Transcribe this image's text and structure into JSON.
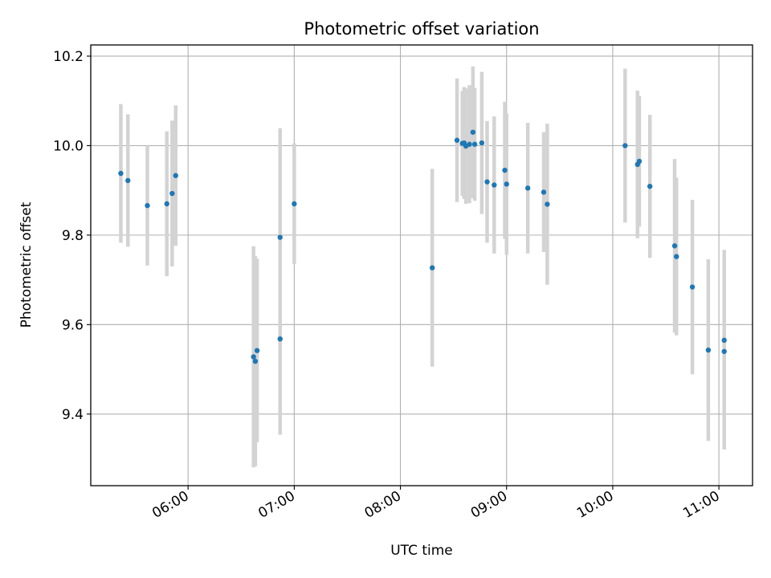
{
  "chart_data": {
    "type": "scatter",
    "title": "Photometric offset variation",
    "xlabel": "UTC time",
    "ylabel": "Photometric offset",
    "x_ticks": [
      "06:00",
      "07:00",
      "08:00",
      "09:00",
      "10:00",
      "11:00"
    ],
    "y_ticks": [
      "9.4",
      "9.6",
      "9.8",
      "10.0",
      "10.2"
    ],
    "xlim": [
      "05:05",
      "11:19"
    ],
    "ylim": [
      9.24,
      10.225
    ],
    "grid": true,
    "legend": "none",
    "colors": {
      "points": "#1f77b4",
      "errorbars": "#d3d3d3",
      "grid": "#b0b0b0"
    },
    "points": [
      {
        "x": "05:22",
        "y": 9.938,
        "err": 0.155
      },
      {
        "x": "05:26",
        "y": 9.922,
        "err": 0.148
      },
      {
        "x": "05:37",
        "y": 9.866,
        "err": 0.134
      },
      {
        "x": "05:48",
        "y": 9.87,
        "err": 0.162
      },
      {
        "x": "05:51",
        "y": 9.893,
        "err": 0.163
      },
      {
        "x": "05:53",
        "y": 9.933,
        "err": 0.157
      },
      {
        "x": "06:37",
        "y": 9.528,
        "err": 0.247
      },
      {
        "x": "06:38",
        "y": 9.518,
        "err": 0.235
      },
      {
        "x": "06:39",
        "y": 9.542,
        "err": 0.205
      },
      {
        "x": "06:52",
        "y": 9.568,
        "err": 0.214
      },
      {
        "x": "06:52",
        "y": 9.795,
        "err": 0.244
      },
      {
        "x": "07:00",
        "y": 9.87,
        "err": 0.135
      },
      {
        "x": "08:18",
        "y": 9.727,
        "err": 0.221
      },
      {
        "x": "08:32",
        "y": 10.012,
        "err": 0.138
      },
      {
        "x": "08:35",
        "y": 10.005,
        "err": 0.117
      },
      {
        "x": "08:36",
        "y": 10.006,
        "err": 0.125
      },
      {
        "x": "08:37",
        "y": 9.999,
        "err": 0.129
      },
      {
        "x": "08:39",
        "y": 10.003,
        "err": 0.132
      },
      {
        "x": "08:41",
        "y": 10.03,
        "err": 0.147
      },
      {
        "x": "08:42",
        "y": 10.003,
        "err": 0.126
      },
      {
        "x": "08:46",
        "y": 10.006,
        "err": 0.159
      },
      {
        "x": "08:49",
        "y": 9.919,
        "err": 0.136
      },
      {
        "x": "08:53",
        "y": 9.912,
        "err": 0.153
      },
      {
        "x": "08:59",
        "y": 9.945,
        "err": 0.153
      },
      {
        "x": "09:00",
        "y": 9.914,
        "err": 0.158
      },
      {
        "x": "09:12",
        "y": 9.905,
        "err": 0.146
      },
      {
        "x": "09:21",
        "y": 9.896,
        "err": 0.134
      },
      {
        "x": "09:23",
        "y": 9.869,
        "err": 0.18
      },
      {
        "x": "10:07",
        "y": 10.0,
        "err": 0.172
      },
      {
        "x": "10:14",
        "y": 9.958,
        "err": 0.165
      },
      {
        "x": "10:15",
        "y": 9.965,
        "err": 0.146
      },
      {
        "x": "10:21",
        "y": 9.909,
        "err": 0.16
      },
      {
        "x": "10:35",
        "y": 9.776,
        "err": 0.194
      },
      {
        "x": "10:36",
        "y": 9.752,
        "err": 0.176
      },
      {
        "x": "10:45",
        "y": 9.684,
        "err": 0.195
      },
      {
        "x": "10:54",
        "y": 9.543,
        "err": 0.203
      },
      {
        "x": "11:03",
        "y": 9.54,
        "err": 0.219
      },
      {
        "x": "11:03",
        "y": 9.565,
        "err": 0.202
      }
    ]
  }
}
